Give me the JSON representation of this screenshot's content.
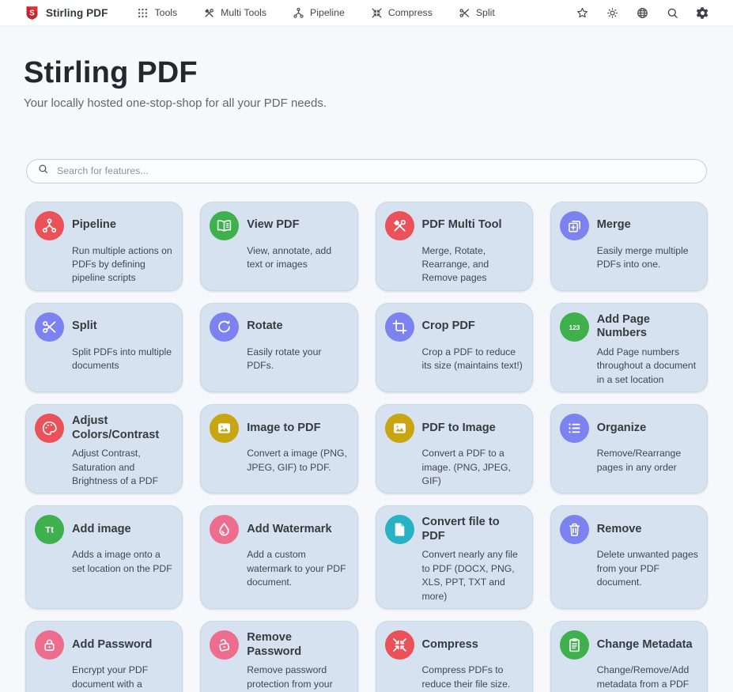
{
  "navbar": {
    "brand": {
      "label": "Stirling PDF",
      "logo_icon": "stirling-logo",
      "logo_color": "#c5252c"
    },
    "items": [
      {
        "label": "Tools",
        "icon": "grid-icon"
      },
      {
        "label": "Multi Tools",
        "icon": "tools-icon"
      },
      {
        "label": "Pipeline",
        "icon": "pipeline-icon"
      },
      {
        "label": "Compress",
        "icon": "compress-icon"
      },
      {
        "label": "Split",
        "icon": "scissors-icon"
      }
    ],
    "actions": [
      {
        "name": "favourites",
        "icon": "star-icon"
      },
      {
        "name": "theme-toggle",
        "icon": "brightness-icon"
      },
      {
        "name": "language",
        "icon": "globe-icon"
      },
      {
        "name": "search",
        "icon": "search-icon"
      },
      {
        "name": "settings",
        "icon": "gear-icon"
      }
    ]
  },
  "hero": {
    "title": "Stirling PDF",
    "subtitle": "Your locally hosted one-stop-shop for all your PDF needs."
  },
  "search": {
    "placeholder": "Search for features...",
    "icon": "search-icon"
  },
  "colors": {
    "red": "#ea5159",
    "green": "#3eb14c",
    "indigo": "#7c82f0",
    "yellow": "#c9a511",
    "pink": "#ee6d8f",
    "cyan": "#29b2c4",
    "card_bg": "#d6e2ef",
    "page_bg": "#f6f8fb"
  },
  "cards": [
    {
      "title": "Pipeline",
      "description": "Run multiple actions on PDFs by defining pipeline scripts",
      "icon": "pipeline-icon",
      "color": "#ea5159"
    },
    {
      "title": "View PDF",
      "description": "View, annotate, add text or images",
      "icon": "book-open-icon",
      "color": "#3eb14c"
    },
    {
      "title": "PDF Multi Tool",
      "description": "Merge, Rotate, Rearrange, and Remove pages",
      "icon": "tools-icon",
      "color": "#ea5159"
    },
    {
      "title": "Merge",
      "description": "Easily merge multiple PDFs into one.",
      "icon": "merge-icon",
      "color": "#7c82f0"
    },
    {
      "title": "Split",
      "description": "Split PDFs into multiple documents",
      "icon": "scissors-icon",
      "color": "#7c82f0"
    },
    {
      "title": "Rotate",
      "description": "Easily rotate your PDFs.",
      "icon": "rotate-icon",
      "color": "#7c82f0"
    },
    {
      "title": "Crop PDF",
      "description": "Crop a PDF to reduce its size (maintains text!)",
      "icon": "crop-icon",
      "color": "#7c82f0"
    },
    {
      "title": "Add Page Numbers",
      "description": "Add Page numbers throughout a document in a set location",
      "icon": "numbers-icon",
      "color": "#3eb14c"
    },
    {
      "title": "Adjust Colors/Contrast",
      "description": "Adjust Contrast, Saturation and Brightness of a PDF",
      "icon": "palette-icon",
      "color": "#ea5159"
    },
    {
      "title": "Image to PDF",
      "description": "Convert a image (PNG, JPEG, GIF) to PDF.",
      "icon": "image-icon",
      "color": "#c9a511"
    },
    {
      "title": "PDF to Image",
      "description": "Convert a PDF to a image. (PNG, JPEG, GIF)",
      "icon": "image-icon",
      "color": "#c9a511"
    },
    {
      "title": "Organize",
      "description": "Remove/Rearrange pages in any order",
      "icon": "list-icon",
      "color": "#7c82f0"
    },
    {
      "title": "Add image",
      "description": "Adds a image onto a set location on the PDF",
      "icon": "text-icon",
      "color": "#3eb14c"
    },
    {
      "title": "Add Watermark",
      "description": "Add a custom watermark to your PDF document.",
      "icon": "droplet-icon",
      "color": "#ee6d8f"
    },
    {
      "title": "Convert file to PDF",
      "description": "Convert nearly any file to PDF (DOCX, PNG, XLS, PPT, TXT and more)",
      "icon": "file-icon",
      "color": "#29b2c4"
    },
    {
      "title": "Remove",
      "description": "Delete unwanted pages from your PDF document.",
      "icon": "trash-icon",
      "color": "#7c82f0"
    },
    {
      "title": "Add Password",
      "description": "Encrypt your PDF document with a password.",
      "icon": "lock-icon",
      "color": "#ee6d8f"
    },
    {
      "title": "Remove Password",
      "description": "Remove password protection from your PDF document.",
      "icon": "unlock-icon",
      "color": "#ee6d8f"
    },
    {
      "title": "Compress",
      "description": "Compress PDFs to reduce their file size.",
      "icon": "compress-icon",
      "color": "#ea5159"
    },
    {
      "title": "Change Metadata",
      "description": "Change/Remove/Add metadata from a PDF document",
      "icon": "clipboard-icon",
      "color": "#3eb14c"
    }
  ]
}
